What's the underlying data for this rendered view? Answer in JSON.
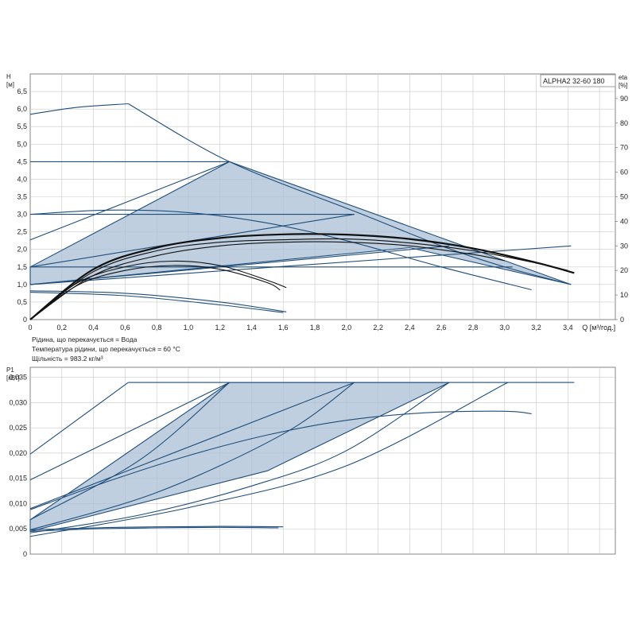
{
  "model": "ALPHA2 32-60 180",
  "fluid_info": [
    "Рідина, що перекачується = Вода",
    "Температура рідини, що перекачується = 60 °C",
    "Щільність = 983.2 кг/м³"
  ],
  "colors": {
    "curve": "#1f4e7a",
    "fill": "#a9bfd6",
    "eta": "#111111",
    "grid": "#c9c9c9"
  },
  "chart_data": [
    {
      "type": "line",
      "panel": "head",
      "title": "",
      "xlabel": "Q [м³/год.]",
      "ylabel_top": "H",
      "ylabel_unit": "[м]",
      "y2label_top": "eta",
      "y2label_unit": "[%]",
      "xlim": [
        0,
        3.7
      ],
      "ylim": [
        0,
        7
      ],
      "y2lim": [
        0,
        100
      ],
      "xticks": [
        "0",
        "0,2",
        "0,4",
        "0,6",
        "0,8",
        "1,0",
        "1,2",
        "1,4",
        "1,6",
        "1,8",
        "2,0",
        "2,2",
        "2,4",
        "2,6",
        "2,8",
        "3,0",
        "3,2",
        "3,4"
      ],
      "yticks": [
        "0",
        "0,5",
        "1,0",
        "1,5",
        "2,0",
        "2,5",
        "3,0",
        "3,5",
        "4,0",
        "4,5",
        "5,0",
        "5,5",
        "6,0",
        "6,5"
      ],
      "y2ticks": [
        "0",
        "10",
        "20",
        "30",
        "40",
        "50",
        "60",
        "70",
        "80",
        "90"
      ],
      "grid": true,
      "shaded_region": {
        "x": [
          0,
          1.26,
          3.42,
          2.4,
          0
        ],
        "y": [
          1.5,
          4.5,
          1.0,
          2.05,
          1.0
        ]
      },
      "series": [
        {
          "x": [
            0,
            0.3,
            0.62
          ],
          "y": [
            5.85,
            6.05,
            6.15
          ]
        },
        {
          "x": [
            0.62,
            1.26,
            2.1,
            2.6,
            3.0,
            3.42
          ],
          "y": [
            6.15,
            4.5,
            3.0,
            2.1,
            1.5,
            1.0
          ]
        },
        {
          "x": [
            0,
            1.26
          ],
          "y": [
            4.5,
            4.5
          ]
        },
        {
          "x": [
            0,
            2.05
          ],
          "y": [
            3.0,
            3.0
          ]
        },
        {
          "x": [
            0,
            3.05
          ],
          "y": [
            1.5,
            1.5
          ]
        },
        {
          "x": [
            0,
            1.26
          ],
          "y": [
            2.27,
            4.5
          ]
        },
        {
          "x": [
            0,
            2.05
          ],
          "y": [
            1.5,
            3.0
          ]
        },
        {
          "x": [
            0,
            2.65
          ],
          "y": [
            1.0,
            2.1
          ]
        },
        {
          "x": [
            0,
            3.42
          ],
          "y": [
            1.0,
            2.1
          ]
        },
        {
          "x": [
            0,
            0.5,
            1.0,
            1.5,
            2.0,
            2.6,
            3.17
          ],
          "y": [
            3.0,
            3.12,
            3.05,
            2.75,
            2.25,
            1.5,
            0.85
          ]
        },
        {
          "x": [
            0,
            0.6,
            1.2,
            1.62
          ],
          "y": [
            0.82,
            0.75,
            0.5,
            0.22
          ]
        },
        {
          "x": [
            0,
            0.6,
            1.2,
            1.6
          ],
          "y": [
            0.78,
            0.68,
            0.42,
            0.2
          ]
        }
      ],
      "eta_series": [
        {
          "x": [
            0,
            0.4,
            0.8,
            1.2,
            1.6,
            2.0,
            2.4,
            2.8,
            3.2,
            3.44
          ],
          "y": [
            0,
            20.5,
            29.3,
            33.2,
            34.7,
            34.6,
            32.8,
            29.0,
            23.2,
            19.0
          ]
        },
        {
          "x": [
            0,
            0.4,
            0.8,
            1.2,
            1.6,
            2.0,
            2.4,
            2.8,
            3.2,
            3.4
          ],
          "y": [
            0,
            19.5,
            28.0,
            31.5,
            32.5,
            32.8,
            31.2,
            28.0,
            23.0,
            20.0
          ]
        },
        {
          "x": [
            0,
            0.4,
            0.8,
            1.2,
            1.6,
            2.0,
            2.4,
            2.8,
            3.0
          ],
          "y": [
            0,
            18.0,
            26.0,
            30.0,
            31.5,
            31.5,
            30.0,
            26.5,
            24.0
          ]
        },
        {
          "x": [
            0,
            0.3,
            0.6,
            0.9,
            1.2,
            1.5,
            1.62
          ],
          "y": [
            0,
            15.0,
            21.5,
            23.8,
            22.0,
            16.0,
            13.0
          ]
        },
        {
          "x": [
            0,
            0.3,
            0.6,
            0.9,
            1.2,
            1.5,
            1.58
          ],
          "y": [
            0,
            14.0,
            20.0,
            22.0,
            20.5,
            15.0,
            12.0
          ]
        }
      ]
    },
    {
      "type": "line",
      "panel": "power",
      "title": "",
      "ylabel_top": "P1",
      "ylabel_unit": "[кВт]",
      "xlim": [
        0,
        3.7
      ],
      "ylim": [
        0,
        0.037
      ],
      "yticks": [
        "0",
        "0,005",
        "0,010",
        "0,015",
        "0,020",
        "0,025",
        "0,030",
        "0,035"
      ],
      "grid": true,
      "shaded_region": {
        "x": [
          0,
          1.26,
          2.65,
          1.5,
          0
        ],
        "y": [
          0.0068,
          0.034,
          0.034,
          0.0165,
          0.0045
        ]
      },
      "series": [
        {
          "x": [
            0,
            0.62
          ],
          "y": [
            0.0198,
            0.034
          ]
        },
        {
          "x": [
            0.62,
            3.44
          ],
          "y": [
            0.034,
            0.034
          ]
        },
        {
          "x": [
            0,
            1.26
          ],
          "y": [
            0.0147,
            0.034
          ]
        },
        {
          "x": [
            0,
            0.7,
            1.26
          ],
          "y": [
            0.0068,
            0.0188,
            0.034
          ]
        },
        {
          "x": [
            0,
            0.8,
            1.6,
            2.05
          ],
          "y": [
            0.0048,
            0.0122,
            0.0238,
            0.034
          ]
        },
        {
          "x": [
            0,
            0.7,
            1.4,
            2.0,
            2.65
          ],
          "y": [
            0.0042,
            0.0078,
            0.0135,
            0.0205,
            0.034
          ]
        },
        {
          "x": [
            0,
            1.0,
            2.0,
            3.02
          ],
          "y": [
            0.0035,
            0.0092,
            0.0175,
            0.034
          ]
        },
        {
          "x": [
            0,
            2.05
          ],
          "y": [
            0.009,
            0.034
          ]
        },
        {
          "x": [
            0,
            0.5,
            1.0,
            1.5,
            2.0,
            2.5,
            3.0,
            3.17
          ],
          "y": [
            0.0088,
            0.0145,
            0.0195,
            0.0236,
            0.0265,
            0.028,
            0.0283,
            0.0278
          ]
        },
        {
          "x": [
            0,
            0.4,
            0.8,
            1.2,
            1.6
          ],
          "y": [
            0.0048,
            0.0052,
            0.0054,
            0.0055,
            0.0054
          ]
        },
        {
          "x": [
            0,
            0.4,
            0.8,
            1.2,
            1.57
          ],
          "y": [
            0.0045,
            0.005,
            0.0052,
            0.0053,
            0.0052
          ]
        }
      ]
    }
  ]
}
